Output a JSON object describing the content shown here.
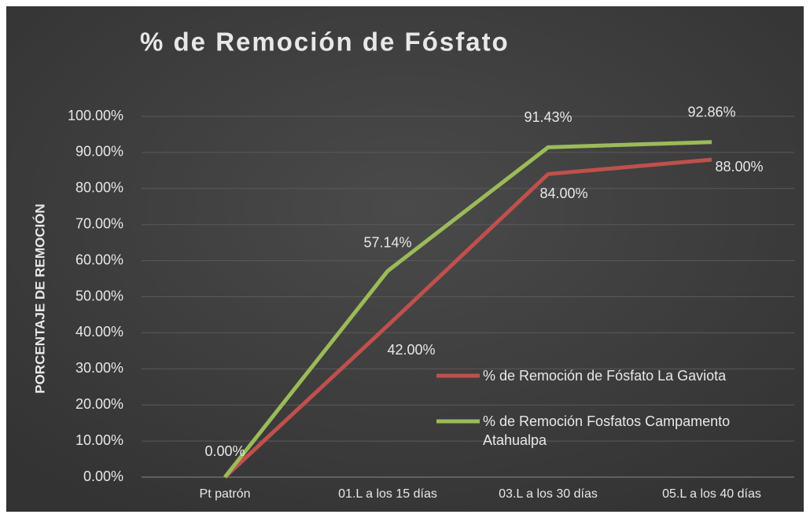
{
  "chart_data": {
    "type": "line",
    "title": "% de Remoción de Fósfato",
    "ylabel": "PORCENTAJE DE REMOCIÓN",
    "categories": [
      "Pt patrón",
      "01.L a los 15 días",
      "03.L a los 30 días",
      "05.L a los 40 días"
    ],
    "series": [
      {
        "name": "% de Remoción de Fósfato La Gaviota",
        "color": "#c0504d",
        "values": [
          0,
          42,
          84,
          88
        ],
        "value_labels": [
          null,
          "42.00%",
          "84.00%",
          "88.00%"
        ]
      },
      {
        "name": "% de Remoción Fosfatos Campamento Atahualpa",
        "color": "#9bbb59",
        "values": [
          0,
          57.14,
          91.43,
          92.86
        ],
        "value_labels": [
          "0.00%",
          "57.14%",
          "91.43%",
          "92.86%"
        ]
      }
    ],
    "ylim": [
      0,
      100
    ],
    "yticks": [
      {
        "value": 0,
        "label": "0.00%"
      },
      {
        "value": 10,
        "label": "10.00%"
      },
      {
        "value": 20,
        "label": "20.00%"
      },
      {
        "value": 30,
        "label": "30.00%"
      },
      {
        "value": 40,
        "label": "40.00%"
      },
      {
        "value": 50,
        "label": "50.00%"
      },
      {
        "value": 60,
        "label": "60.00%"
      },
      {
        "value": 70,
        "label": "70.00%"
      },
      {
        "value": 80,
        "label": "80.00%"
      },
      {
        "value": 90,
        "label": "90.00%"
      },
      {
        "value": 100,
        "label": "100.00%"
      }
    ],
    "grid": true,
    "legend": "right"
  }
}
